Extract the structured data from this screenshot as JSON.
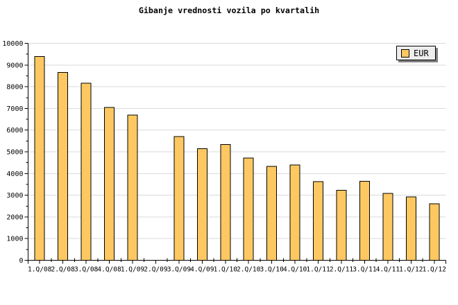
{
  "title": "Gibanje vrednosti vozila po kvartalih",
  "legend": {
    "label": "EUR",
    "swatch_color": "#fdc862"
  },
  "colors": {
    "background": "#ffffff",
    "bar_fill": "#fdc862",
    "bar_border": "#000000",
    "grid": "#dadada",
    "axis": "#000000",
    "tick_label": "#000000",
    "legend_bg": "#ededed",
    "legend_border": "#000000",
    "legend_shadow": "#808080"
  },
  "chart_data": {
    "type": "bar",
    "title": "Gibanje vrednosti vozila po kvartalih",
    "categories": [
      "1.Q/08",
      "2.Q/08",
      "3.Q/08",
      "4.Q/08",
      "1.Q/09",
      "2.Q/09",
      "3.Q/09",
      "4.Q/09",
      "1.Q/10",
      "2.Q/10",
      "3.Q/10",
      "4.Q/10",
      "1.Q/11",
      "2.Q/11",
      "3.Q/11",
      "4.Q/11",
      "1.Q/12",
      "1.Q/12"
    ],
    "series": [
      {
        "name": "EUR",
        "values": [
          9400,
          8660,
          8170,
          7050,
          6700,
          null,
          5700,
          5140,
          5330,
          4720,
          4330,
          4400,
          3620,
          3220,
          3640,
          3080,
          2930,
          2600
        ]
      }
    ],
    "xlabel": "",
    "ylabel": "",
    "ylim": [
      0,
      10000
    ],
    "y_major_step": 1000,
    "y_minor_step": 500,
    "y_tick_labels": [
      "0",
      "1000",
      "2000",
      "3000",
      "4000",
      "5000",
      "6000",
      "7000",
      "8000",
      "9000",
      "10000"
    ],
    "grid": true,
    "legend_entries": [
      "EUR"
    ],
    "legend_position": "top-right"
  }
}
